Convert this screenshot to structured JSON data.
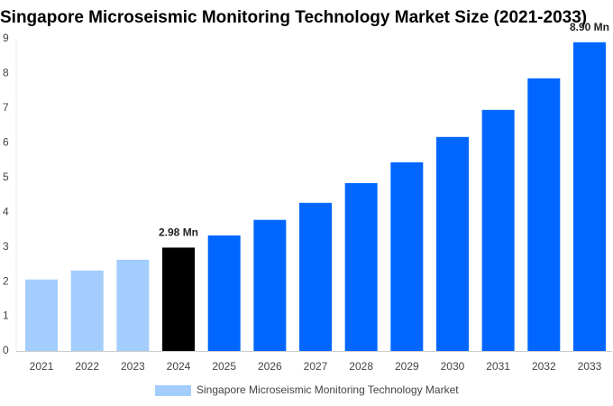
{
  "chart_data": {
    "type": "bar",
    "title": "Singapore Microseismic Monitoring Technology Market Size (2021-2033)",
    "categories": [
      "2021",
      "2022",
      "2023",
      "2024",
      "2025",
      "2026",
      "2027",
      "2028",
      "2029",
      "2030",
      "2031",
      "2032",
      "2033"
    ],
    "series": [
      {
        "name": "Singapore Microseismic Monitoring Technology Market",
        "color": "#a3cdfc",
        "colors": [
          "#a3cdfc",
          "#a3cdfc",
          "#a3cdfc",
          "#000000",
          "#0066ff",
          "#0066ff",
          "#0066ff",
          "#0066ff",
          "#0066ff",
          "#0066ff",
          "#0066ff",
          "#0066ff",
          "#0066ff"
        ],
        "values": [
          2.06,
          2.32,
          2.63,
          2.98,
          3.33,
          3.78,
          4.27,
          4.84,
          5.44,
          6.17,
          6.95,
          7.86,
          8.9
        ],
        "value_labels": [
          null,
          null,
          null,
          "2.98 Mn",
          null,
          null,
          null,
          null,
          null,
          null,
          null,
          null,
          "8.90 Mn"
        ]
      }
    ],
    "ylim": [
      0,
      9
    ],
    "yticks": [
      0,
      1,
      2,
      3,
      4,
      5,
      6,
      7,
      8,
      9
    ],
    "grid": false
  }
}
